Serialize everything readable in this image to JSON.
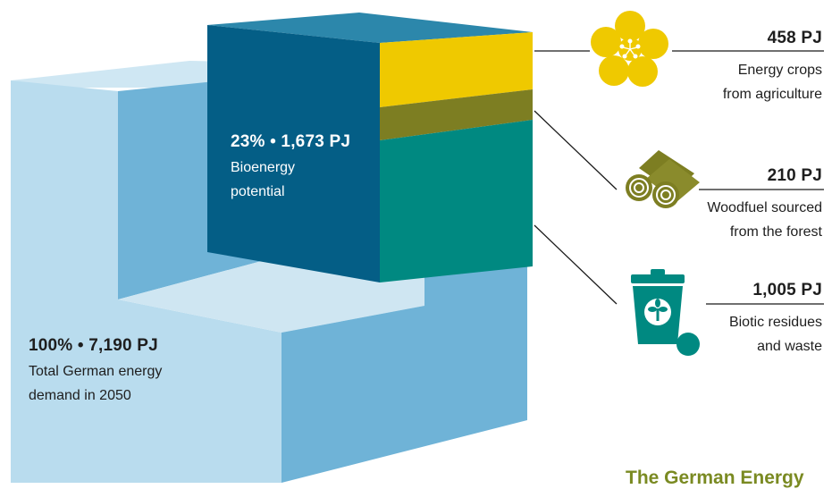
{
  "colors": {
    "demand_light": "#b9dcee",
    "demand_mid": "#71b4d8",
    "bio_front": "#045e86",
    "bio_top": "#2c87ab",
    "energy_crops": "#efc900",
    "woodfuel": "#7d7e22",
    "biotic": "#008981",
    "brand_green": "#7a8a22"
  },
  "demand": {
    "value_label": "100% • 7,190 PJ",
    "desc_line1": "Total German energy",
    "desc_line2": "demand in 2050"
  },
  "bioenergy": {
    "value_label": "23% • 1,673 PJ",
    "desc_line1": "Bioenergy",
    "desc_line2": "potential"
  },
  "sources": [
    {
      "value": "458 PJ",
      "line1": "Energy crops",
      "line2": "from agriculture",
      "icon": "flower-icon"
    },
    {
      "value": "210 PJ",
      "line1": "Woodfuel sourced",
      "line2": "from the forest",
      "icon": "logs-icon"
    },
    {
      "value": "1,005 PJ",
      "line1": "Biotic residues",
      "line2": "and waste",
      "icon": "organic-waste-bin-icon"
    }
  ],
  "footer": {
    "brand_text": "The German Energy"
  }
}
